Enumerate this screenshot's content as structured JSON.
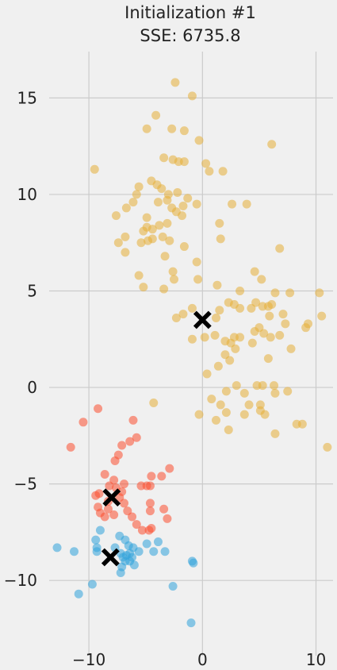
{
  "chart_data": {
    "type": "scatter",
    "title": "Initialization #1",
    "subtitle": "SSE: 6735.8",
    "xlabel": "",
    "ylabel": "",
    "xlim": [
      -13.5,
      11.5
    ],
    "ylim": [
      -13.9,
      17.4
    ],
    "xticks": [
      -10,
      0,
      10
    ],
    "yticks": [
      -10,
      -5,
      0,
      5,
      10,
      15
    ],
    "xtick_labels": [
      "−10",
      "0",
      "10"
    ],
    "ytick_labels": [
      "−10",
      "−5",
      "0",
      "5",
      "10",
      "15"
    ],
    "grid": true,
    "colors": {
      "background": "#f0f0f0",
      "grid": "#cbcbcb",
      "centroid": "#000000"
    },
    "series": [
      {
        "color": "#e5ae38",
        "points": [
          [
            -2.4,
            15.8
          ],
          [
            -0.9,
            15.1
          ],
          [
            -4.1,
            14.1
          ],
          [
            -4.9,
            13.4
          ],
          [
            -2.7,
            13.4
          ],
          [
            -1.6,
            13.3
          ],
          [
            -0.3,
            12.8
          ],
          [
            6.1,
            12.6
          ],
          [
            -9.5,
            11.3
          ],
          [
            -3.4,
            11.9
          ],
          [
            -2.6,
            11.8
          ],
          [
            -2.1,
            11.7
          ],
          [
            -1.6,
            11.7
          ],
          [
            0.3,
            11.6
          ],
          [
            0.6,
            11.2
          ],
          [
            1.8,
            11.2
          ],
          [
            -5.6,
            10.4
          ],
          [
            -5.8,
            10.0
          ],
          [
            -4.5,
            10.7
          ],
          [
            -4.0,
            10.5
          ],
          [
            -3.6,
            10.3
          ],
          [
            -3.0,
            10.0
          ],
          [
            -3.1,
            9.7
          ],
          [
            -2.2,
            10.1
          ],
          [
            -1.3,
            9.8
          ],
          [
            -6.1,
            9.6
          ],
          [
            -7.6,
            8.9
          ],
          [
            -6.7,
            9.3
          ],
          [
            -4.9,
            8.8
          ],
          [
            -3.9,
            9.6
          ],
          [
            -2.7,
            9.3
          ],
          [
            -2.3,
            9.1
          ],
          [
            -1.7,
            9.4
          ],
          [
            -0.5,
            9.5
          ],
          [
            2.6,
            9.5
          ],
          [
            3.9,
            9.5
          ],
          [
            -1.8,
            8.9
          ],
          [
            -3.1,
            8.5
          ],
          [
            -3.8,
            8.4
          ],
          [
            -4.4,
            8.2
          ],
          [
            -4.9,
            8.3
          ],
          [
            -5.2,
            8.1
          ],
          [
            -3.5,
            7.8
          ],
          [
            -2.9,
            7.6
          ],
          [
            -6.8,
            7.8
          ],
          [
            -7.4,
            7.5
          ],
          [
            -4.4,
            7.7
          ],
          [
            -4.8,
            7.6
          ],
          [
            -5.4,
            7.5
          ],
          [
            -1.6,
            7.3
          ],
          [
            1.5,
            8.5
          ],
          [
            1.6,
            7.7
          ],
          [
            -6.8,
            7.0
          ],
          [
            -3.3,
            6.8
          ],
          [
            -2.6,
            6.0
          ],
          [
            -0.5,
            6.5
          ],
          [
            6.8,
            7.2
          ],
          [
            -5.6,
            5.8
          ],
          [
            -5.2,
            5.2
          ],
          [
            -3.4,
            5.1
          ],
          [
            -2.5,
            5.6
          ],
          [
            -0.4,
            5.6
          ],
          [
            1.3,
            5.3
          ],
          [
            3.3,
            5.0
          ],
          [
            4.6,
            6.0
          ],
          [
            5.2,
            5.6
          ],
          [
            6.4,
            4.9
          ],
          [
            7.7,
            4.9
          ],
          [
            10.3,
            4.9
          ],
          [
            4.7,
            4.4
          ],
          [
            5.3,
            4.2
          ],
          [
            4.3,
            4.1
          ],
          [
            3.3,
            4.1
          ],
          [
            2.8,
            4.3
          ],
          [
            2.3,
            4.4
          ],
          [
            1.5,
            4.0
          ],
          [
            1.2,
            3.6
          ],
          [
            -0.9,
            4.1
          ],
          [
            -1.7,
            3.8
          ],
          [
            -2.3,
            3.6
          ],
          [
            5.8,
            4.2
          ],
          [
            5.9,
            3.7
          ],
          [
            6.1,
            4.3
          ],
          [
            7.1,
            3.8
          ],
          [
            7.3,
            3.3
          ],
          [
            9.3,
            3.3
          ],
          [
            9.1,
            3.1
          ],
          [
            10.5,
            3.7
          ],
          [
            5.0,
            3.1
          ],
          [
            4.6,
            2.9
          ],
          [
            5.4,
            2.8
          ],
          [
            6.0,
            2.6
          ],
          [
            6.8,
            2.7
          ],
          [
            3.3,
            2.6
          ],
          [
            2.8,
            2.6
          ],
          [
            2.5,
            2.3
          ],
          [
            2.0,
            2.4
          ],
          [
            1.1,
            2.7
          ],
          [
            0.2,
            2.6
          ],
          [
            -0.9,
            2.5
          ],
          [
            2.0,
            1.7
          ],
          [
            2.9,
            2.0
          ],
          [
            4.4,
            2.3
          ],
          [
            5.8,
            1.5
          ],
          [
            7.8,
            2.0
          ],
          [
            2.4,
            1.4
          ],
          [
            1.4,
            1.1
          ],
          [
            0.4,
            0.7
          ],
          [
            3.0,
            0.1
          ],
          [
            4.8,
            0.1
          ],
          [
            5.3,
            0.1
          ],
          [
            6.3,
            0.1
          ],
          [
            7.5,
            -0.2
          ],
          [
            2.1,
            -0.2
          ],
          [
            3.7,
            -0.3
          ],
          [
            6.4,
            -0.3
          ],
          [
            0.8,
            -0.6
          ],
          [
            1.6,
            -0.9
          ],
          [
            4.1,
            -0.9
          ],
          [
            5.1,
            -0.9
          ],
          [
            5.1,
            -1.2
          ],
          [
            5.5,
            -1.4
          ],
          [
            3.7,
            -1.4
          ],
          [
            8.3,
            -1.9
          ],
          [
            8.8,
            -1.9
          ],
          [
            2.3,
            -2.2
          ],
          [
            6.4,
            -2.4
          ],
          [
            11.0,
            -3.1
          ],
          [
            -4.3,
            -0.8
          ],
          [
            -0.3,
            -1.4
          ],
          [
            1.2,
            -1.7
          ],
          [
            2.1,
            -1.3
          ]
        ]
      },
      {
        "color": "#fc4f30",
        "points": [
          [
            -9.2,
            -1.1
          ],
          [
            -10.5,
            -1.8
          ],
          [
            -6.1,
            -1.7
          ],
          [
            -11.6,
            -3.1
          ],
          [
            -7.1,
            -3.0
          ],
          [
            -6.4,
            -2.8
          ],
          [
            -5.8,
            -2.6
          ],
          [
            -7.4,
            -3.5
          ],
          [
            -7.7,
            -3.8
          ],
          [
            -2.9,
            -4.2
          ],
          [
            -3.6,
            -4.6
          ],
          [
            -4.5,
            -4.6
          ],
          [
            -8.6,
            -4.5
          ],
          [
            -7.8,
            -4.8
          ],
          [
            -8.2,
            -5.1
          ],
          [
            -7.6,
            -5.2
          ],
          [
            -7.1,
            -5.4
          ],
          [
            -6.9,
            -5.0
          ],
          [
            -5.4,
            -5.1
          ],
          [
            -4.9,
            -5.1
          ],
          [
            -4.6,
            -5.1
          ],
          [
            -9.4,
            -5.6
          ],
          [
            -9.1,
            -5.5
          ],
          [
            -8.3,
            -5.9
          ],
          [
            -7.3,
            -5.7
          ],
          [
            -6.9,
            -6.0
          ],
          [
            -9.2,
            -6.2
          ],
          [
            -8.3,
            -6.3
          ],
          [
            -7.8,
            -6.6
          ],
          [
            -8.6,
            -6.7
          ],
          [
            -9.0,
            -6.5
          ],
          [
            -4.6,
            -6.0
          ],
          [
            -4.6,
            -6.4
          ],
          [
            -3.4,
            -6.3
          ],
          [
            -6.2,
            -6.7
          ],
          [
            -5.8,
            -7.1
          ],
          [
            -5.3,
            -7.4
          ],
          [
            -4.7,
            -7.4
          ],
          [
            -4.5,
            -7.3
          ],
          [
            -3.1,
            -6.8
          ],
          [
            -6.6,
            -6.4
          ]
        ]
      },
      {
        "color": "#30a2da",
        "points": [
          [
            -9.0,
            -7.4
          ],
          [
            -9.4,
            -7.9
          ],
          [
            -9.3,
            -8.3
          ],
          [
            -9.3,
            -8.5
          ],
          [
            -7.3,
            -7.7
          ],
          [
            -6.8,
            -7.9
          ],
          [
            -6.5,
            -8.2
          ],
          [
            -6.1,
            -8.3
          ],
          [
            -5.6,
            -8.5
          ],
          [
            -4.9,
            -8.1
          ],
          [
            -3.9,
            -8.0
          ],
          [
            -3.3,
            -8.5
          ],
          [
            -4.3,
            -8.5
          ],
          [
            -7.2,
            -8.6
          ],
          [
            -7.0,
            -8.8
          ],
          [
            -6.7,
            -8.7
          ],
          [
            -6.4,
            -8.6
          ],
          [
            -6.2,
            -8.8
          ],
          [
            -6.4,
            -9.0
          ],
          [
            -6.0,
            -9.2
          ],
          [
            -7.1,
            -9.3
          ],
          [
            -7.2,
            -9.6
          ],
          [
            -12.8,
            -8.3
          ],
          [
            -11.3,
            -8.5
          ],
          [
            -0.9,
            -9.0
          ],
          [
            -0.8,
            -9.1
          ],
          [
            -9.7,
            -10.2
          ],
          [
            -10.9,
            -10.7
          ],
          [
            -2.6,
            -10.3
          ],
          [
            -1.0,
            -12.2
          ],
          [
            -7.7,
            -8.3
          ],
          [
            -6.8,
            -9.0
          ]
        ]
      }
    ],
    "centroids": [
      [
        0.0,
        3.5
      ],
      [
        -8.0,
        -5.7
      ],
      [
        -8.1,
        -8.8
      ]
    ]
  }
}
